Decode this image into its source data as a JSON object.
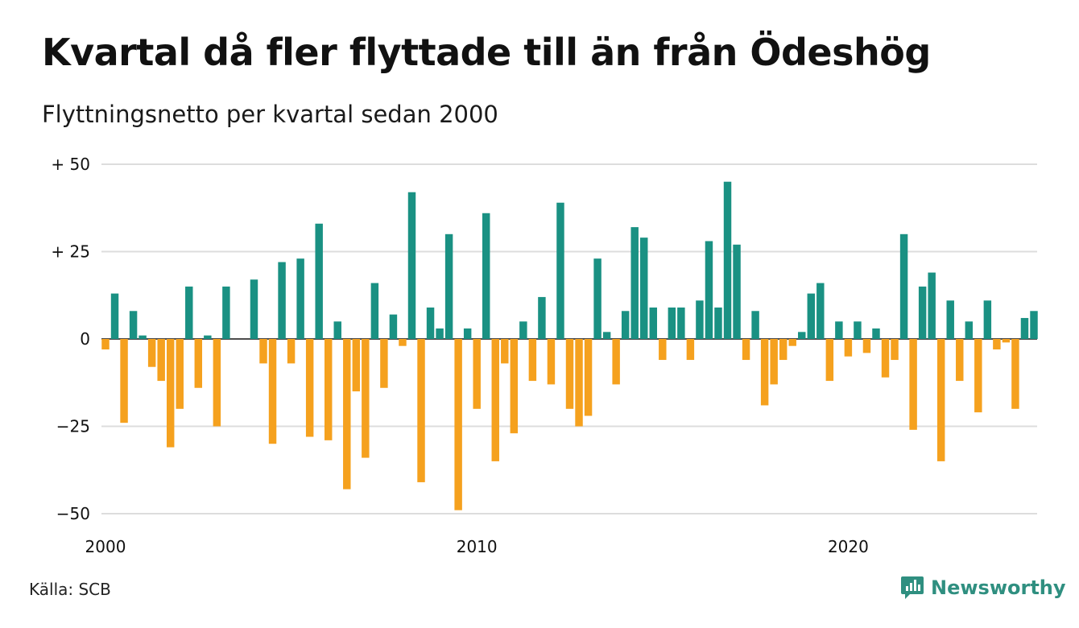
{
  "header": {
    "title": "Kvartal då fler flyttade till än från Ödeshög",
    "subtitle": "Flyttningsnetto per kvartal sedan 2000"
  },
  "footer": {
    "source": "Källa: SCB",
    "brand": "Newsworthy"
  },
  "colors": {
    "positive": "#1a9183",
    "negative": "#f5a11e",
    "grid": "#dddddd",
    "brand": "#2f8f80"
  },
  "icons": {
    "brand_logo": "newsworthy-logo-icon"
  },
  "chart_data": {
    "type": "bar",
    "title": "Kvartal då fler flyttade till än från Ödeshög",
    "subtitle": "Flyttningsnetto per kvartal sedan 2000",
    "xlabel": "",
    "ylabel": "",
    "ylim": [
      -50,
      50
    ],
    "y_ticks": [
      {
        "value": 50,
        "label": "+ 50"
      },
      {
        "value": 25,
        "label": "+ 25"
      },
      {
        "value": 0,
        "label": "0"
      },
      {
        "value": -25,
        "label": "−25"
      },
      {
        "value": -50,
        "label": "−50"
      }
    ],
    "x_ticks": [
      {
        "year": 2000,
        "label": "2000"
      },
      {
        "year": 2010,
        "label": "2010"
      },
      {
        "year": 2020,
        "label": "2020"
      }
    ],
    "start_year": 2000,
    "grid": true,
    "values": [
      -3,
      13,
      -24,
      8,
      1,
      -8,
      -12,
      -31,
      -20,
      15,
      -14,
      1,
      -25,
      15,
      0,
      0,
      17,
      -7,
      -30,
      22,
      -7,
      23,
      -28,
      33,
      -29,
      5,
      -43,
      -15,
      -34,
      16,
      -14,
      7,
      -2,
      42,
      -41,
      9,
      3,
      30,
      -49,
      3,
      -20,
      36,
      -35,
      -7,
      -27,
      5,
      -12,
      12,
      -13,
      39,
      -20,
      -25,
      -22,
      23,
      2,
      -13,
      8,
      32,
      29,
      9,
      -6,
      9,
      9,
      -6,
      11,
      28,
      9,
      45,
      27,
      -6,
      8,
      -19,
      -13,
      -6,
      -2,
      2,
      13,
      16,
      -12,
      5,
      -5,
      5,
      -4,
      3,
      -11,
      -6,
      30,
      -26,
      15,
      19,
      -35,
      11,
      -12,
      5,
      -21,
      11,
      -3,
      -1,
      -20,
      6,
      8
    ]
  }
}
